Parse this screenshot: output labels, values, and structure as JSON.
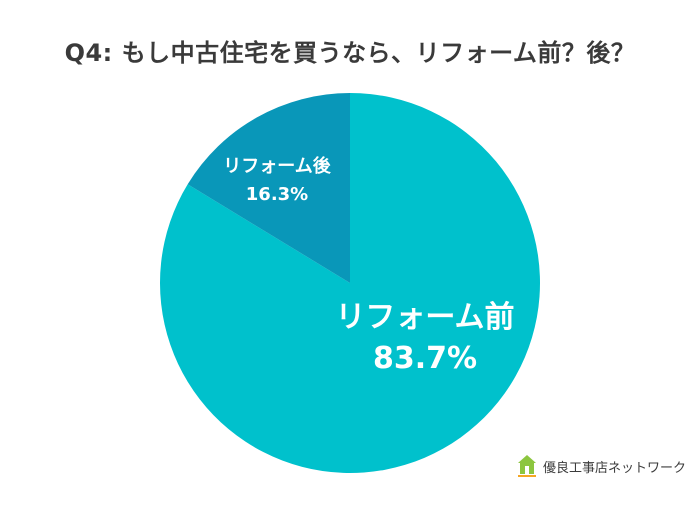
{
  "title": "Q4:  もし中古住宅を買うなら、リフォーム前？後？",
  "chart_data": {
    "type": "pie",
    "slices": [
      {
        "label": "リフォーム前",
        "value": 83.7,
        "display": "83.7%",
        "color": "#00c1cc"
      },
      {
        "label": "リフォーム後",
        "value": 16.3,
        "display": "16.3%",
        "color": "#0997b9"
      }
    ],
    "start_angle": "12 o'clock",
    "direction": "clockwise"
  },
  "logo": {
    "text": "優良工事店ネットワーク",
    "icon": "house-logo-icon",
    "color": "#8cc63f"
  }
}
